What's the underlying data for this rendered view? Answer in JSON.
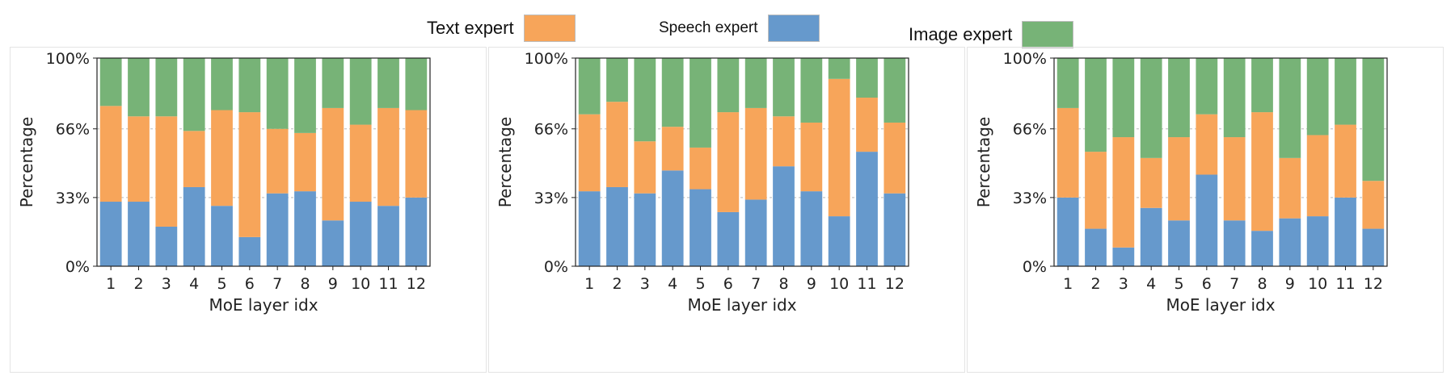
{
  "legend": [
    {
      "label": "Text expert",
      "color": "#f7a55a"
    },
    {
      "label": "Speech expert",
      "color": "#6699cc"
    },
    {
      "label": "Image expert",
      "color": "#77b377"
    }
  ],
  "colors": {
    "text": "#f7a55a",
    "speech": "#6699cc",
    "image": "#77b377",
    "grid": "#bbbbbb"
  },
  "chart_data": [
    {
      "type": "bar",
      "stacked": true,
      "categories": [
        "1",
        "2",
        "3",
        "4",
        "5",
        "6",
        "7",
        "8",
        "9",
        "10",
        "11",
        "12"
      ],
      "series": [
        {
          "name": "Speech expert",
          "values": [
            31,
            31,
            19,
            38,
            29,
            14,
            35,
            36,
            22,
            31,
            29,
            33
          ]
        },
        {
          "name": "Text expert",
          "values": [
            46,
            41,
            53,
            27,
            46,
            60,
            31,
            28,
            54,
            37,
            47,
            42
          ]
        },
        {
          "name": "Image expert",
          "values": [
            23,
            28,
            28,
            35,
            25,
            26,
            34,
            36,
            24,
            32,
            24,
            25
          ]
        }
      ],
      "xlabel": "MoE layer idx",
      "ylabel": "Percentage",
      "ylim": [
        0,
        100
      ],
      "yticks": [
        "0%",
        "33%",
        "66%",
        "100%"
      ],
      "ytick_values": [
        0,
        33,
        66,
        100
      ],
      "grid": "horizontal dashed"
    },
    {
      "type": "bar",
      "stacked": true,
      "categories": [
        "1",
        "2",
        "3",
        "4",
        "5",
        "6",
        "7",
        "8",
        "9",
        "10",
        "11",
        "12"
      ],
      "series": [
        {
          "name": "Speech expert",
          "values": [
            36,
            38,
            35,
            46,
            37,
            26,
            32,
            48,
            36,
            24,
            55,
            35
          ]
        },
        {
          "name": "Text expert",
          "values": [
            37,
            41,
            25,
            21,
            20,
            48,
            44,
            24,
            33,
            66,
            26,
            34
          ]
        },
        {
          "name": "Image expert",
          "values": [
            27,
            21,
            40,
            33,
            43,
            26,
            24,
            28,
            31,
            10,
            19,
            31
          ]
        }
      ],
      "xlabel": "MoE layer idx",
      "ylabel": "Percentage",
      "ylim": [
        0,
        100
      ],
      "yticks": [
        "0%",
        "33%",
        "66%",
        "100%"
      ],
      "ytick_values": [
        0,
        33,
        66,
        100
      ],
      "grid": "horizontal dashed"
    },
    {
      "type": "bar",
      "stacked": true,
      "categories": [
        "1",
        "2",
        "3",
        "4",
        "5",
        "6",
        "7",
        "8",
        "9",
        "10",
        "11",
        "12"
      ],
      "series": [
        {
          "name": "Speech expert",
          "values": [
            33,
            18,
            9,
            28,
            22,
            44,
            22,
            17,
            23,
            24,
            33,
            18
          ]
        },
        {
          "name": "Text expert",
          "values": [
            43,
            37,
            53,
            24,
            40,
            29,
            40,
            57,
            29,
            39,
            35,
            23
          ]
        },
        {
          "name": "Image expert",
          "values": [
            24,
            45,
            38,
            48,
            38,
            27,
            38,
            26,
            48,
            37,
            32,
            59
          ]
        }
      ],
      "xlabel": "MoE layer idx",
      "ylabel": "Percentage",
      "ylim": [
        0,
        100
      ],
      "yticks": [
        "0%",
        "33%",
        "66%",
        "100%"
      ],
      "ytick_values": [
        0,
        33,
        66,
        100
      ],
      "grid": "horizontal dashed"
    }
  ]
}
